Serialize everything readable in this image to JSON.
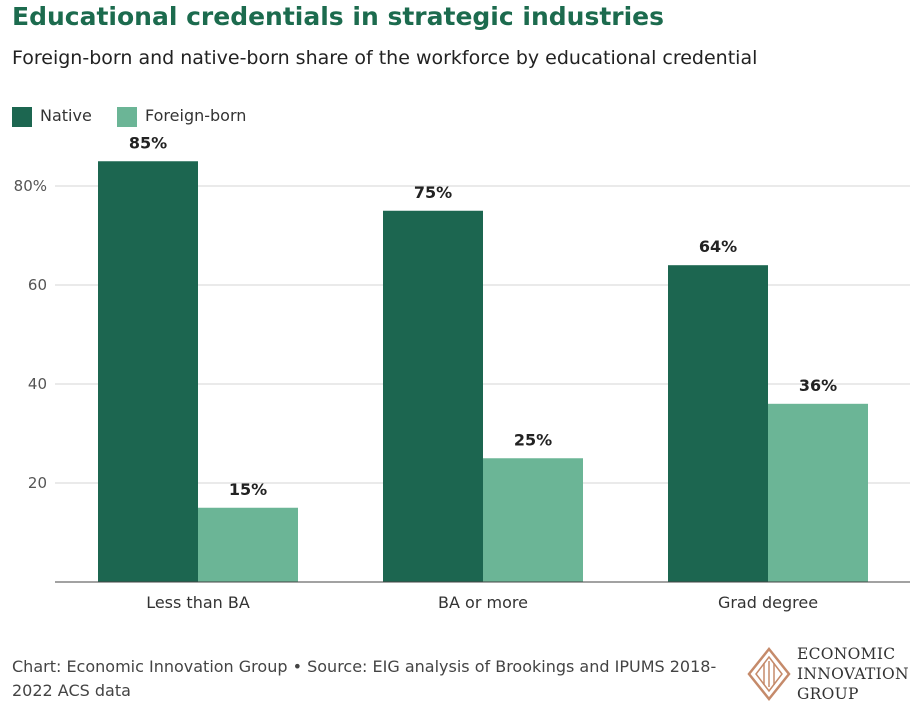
{
  "title": "Educational credentials in strategic industries",
  "subtitle": "Foreign-born and native-born share of the workforce by educational credential",
  "legend": [
    {
      "label": "Native",
      "color": "#1c6650"
    },
    {
      "label": "Foreign-born",
      "color": "#6bb596"
    }
  ],
  "chart_data": {
    "type": "bar",
    "categories": [
      "Less than BA",
      "BA or more",
      "Grad degree"
    ],
    "series": [
      {
        "name": "Native",
        "values": [
          85,
          75,
          64
        ],
        "labels": [
          "85%",
          "75%",
          "64%"
        ],
        "color": "#1c6650"
      },
      {
        "name": "Foreign-born",
        "values": [
          15,
          25,
          36
        ],
        "labels": [
          "15%",
          "25%",
          "36%"
        ],
        "color": "#6bb596"
      }
    ],
    "yticks": [
      "20",
      "40",
      "60",
      "80%"
    ],
    "ytick_values": [
      20,
      40,
      60,
      80
    ],
    "ylim": [
      0,
      85
    ],
    "grid": true,
    "legend_position": "top-left"
  },
  "footer": "Chart: Economic Innovation Group • Source: EIG analysis of Brookings and IPUMS 2018-2022 ACS data",
  "logo": {
    "line1": "ECONOMIC",
    "line2": "INNOVATION",
    "line3": "GROUP"
  }
}
